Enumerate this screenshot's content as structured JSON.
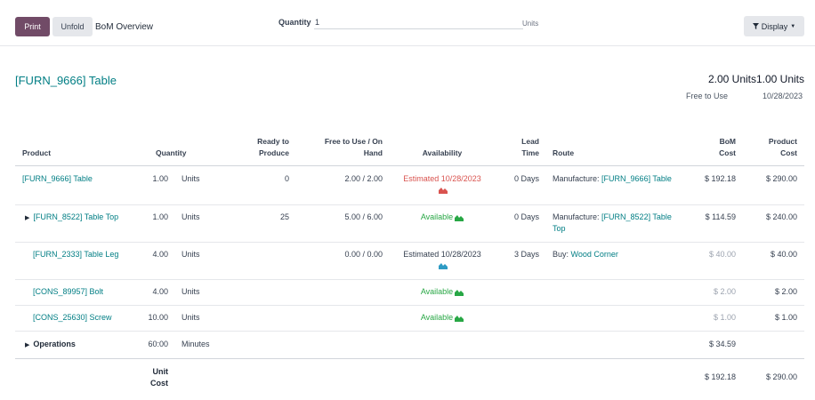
{
  "toolbar": {
    "print_label": "Print",
    "unfold_label": "Unfold",
    "view_title": "BoM Overview",
    "quantity_label": "Quantity",
    "quantity_value": "1",
    "quantity_uom": "Units",
    "display_label": "Display",
    "display_icon": "filter-icon"
  },
  "header": {
    "product": "[FURN_9666] Table",
    "summary": [
      {
        "value": "2.00 Units",
        "label": "Free to Use"
      },
      {
        "value": "1.00 Units",
        "label": "10/28/2023"
      }
    ]
  },
  "columns": {
    "product": "Product",
    "quantity": "Quantity",
    "ready_l1": "Ready to",
    "ready_l2": "Produce",
    "free_l1": "Free to Use / On",
    "free_l2": "Hand",
    "availability": "Availability",
    "lead_l1": "Lead",
    "lead_l2": "Time",
    "route": "Route",
    "bom_l1": "BoM",
    "bom_l2": "Cost",
    "prod_l1": "Product",
    "prod_l2": "Cost"
  },
  "rows": [
    {
      "product": "[FURN_9666] Table",
      "qty": "1.00",
      "uom": "Units",
      "ready": "0",
      "free": "2.00 / 2.00",
      "availability": "Estimated 10/28/2023",
      "lead": "0 Days",
      "route_prefix": "Manufacture:",
      "route_link": "[FURN_9666] Table",
      "bom_cost": "$ 192.18",
      "product_cost": "$ 290.00"
    },
    {
      "product": "[FURN_8522] Table Top",
      "qty": "1.00",
      "uom": "Units",
      "ready": "25",
      "free": "5.00 / 6.00",
      "availability": "Available",
      "lead": "0 Days",
      "route_prefix": "Manufacture:",
      "route_link_l1": "[FURN_8522] Table",
      "route_link_l2": "Top",
      "bom_cost": "$ 114.59",
      "product_cost": "$ 240.00"
    },
    {
      "product": "[FURN_2333] Table Leg",
      "qty": "4.00",
      "uom": "Units",
      "free": "0.00 / 0.00",
      "availability": "Estimated 10/28/2023",
      "lead": "3 Days",
      "route_prefix": "Buy:",
      "route_link": "Wood Corner",
      "bom_cost": "$ 40.00",
      "product_cost": "$ 40.00"
    },
    {
      "product": "[CONS_89957] Bolt",
      "qty": "4.00",
      "uom": "Units",
      "availability": "Available",
      "bom_cost": "$ 2.00",
      "product_cost": "$ 2.00"
    },
    {
      "product": "[CONS_25630] Screw",
      "qty": "10.00",
      "uom": "Units",
      "availability": "Available",
      "bom_cost": "$ 1.00",
      "product_cost": "$ 1.00"
    },
    {
      "product": "Operations",
      "qty": "60:00",
      "uom": "Minutes",
      "bom_cost": "$ 34.59"
    }
  ],
  "footer": {
    "label_l1": "Unit",
    "label_l2": "Cost",
    "bom_cost": "$ 192.18",
    "product_cost": "$ 290.00"
  },
  "colors": {
    "primary": "#714B67",
    "link": "#017e84",
    "available": "#28a745",
    "late": "#d9534f",
    "forecast_icon": "#2e9bc4"
  }
}
